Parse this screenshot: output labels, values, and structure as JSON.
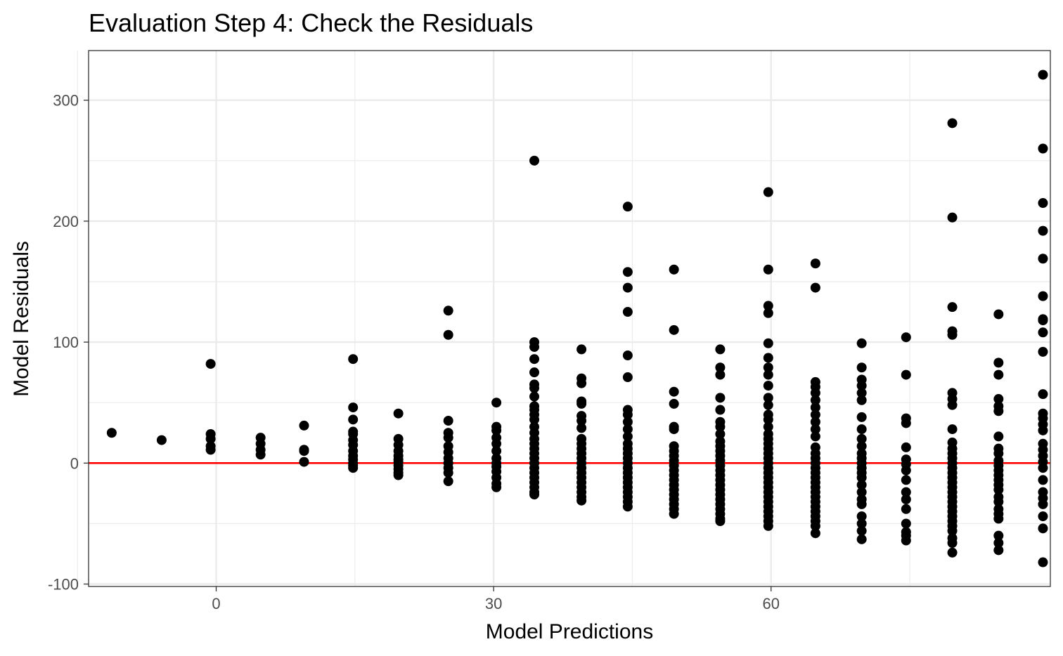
{
  "chart_data": {
    "type": "scatter",
    "title": "Evaluation Step 4: Check the Residuals",
    "xlabel": "Model Predictions",
    "ylabel": "Model Residuals",
    "xlim": [
      -13.8,
      90.2
    ],
    "ylim": [
      -102,
      341
    ],
    "x_ticks": [
      0,
      30,
      60
    ],
    "x_tick_labels": [
      "0",
      "30",
      "60"
    ],
    "x_minor_ticks": [
      -15,
      15,
      45,
      75
    ],
    "y_ticks": [
      -100,
      0,
      100,
      200,
      300
    ],
    "y_tick_labels": [
      "-100",
      "0",
      "100",
      "200",
      "300"
    ],
    "y_minor_ticks": [
      -50,
      50,
      150,
      250
    ],
    "grid": true,
    "reference_line": {
      "y": 0,
      "color": "#ff0000"
    },
    "colors": {
      "points": "#000000",
      "panel_border": "#333333",
      "grid": "#ebebeb"
    },
    "series": [
      {
        "x": -11.3,
        "y": [
          25
        ]
      },
      {
        "x": -5.9,
        "y": [
          19
        ]
      },
      {
        "x": -0.6,
        "y": [
          82,
          24,
          20,
          14,
          11
        ]
      },
      {
        "x": 4.8,
        "y": [
          21,
          16,
          11,
          7
        ]
      },
      {
        "x": 9.5,
        "y": [
          31,
          11,
          10,
          1
        ]
      },
      {
        "x": 14.8,
        "y": [
          86,
          46,
          36,
          26,
          24,
          19,
          15,
          10,
          6,
          3,
          0,
          -2,
          -4
        ]
      },
      {
        "x": 19.7,
        "y": [
          41,
          20,
          15,
          10,
          6,
          3,
          1,
          -2,
          -5,
          -8,
          -10
        ]
      },
      {
        "x": 25.1,
        "y": [
          126,
          106,
          35,
          25,
          21,
          14,
          9,
          4,
          0,
          -4,
          -8,
          -15
        ]
      },
      {
        "x": 30.3,
        "y": [
          50,
          30,
          27,
          21,
          16,
          10,
          4,
          0,
          -3,
          -7,
          -12,
          -17,
          -20
        ]
      },
      {
        "x": 34.4,
        "y": [
          250,
          100,
          96,
          86,
          75,
          65,
          62,
          55,
          47,
          44,
          40,
          36,
          30,
          25,
          20,
          16,
          12,
          8,
          4,
          0,
          -4,
          -8,
          -12,
          -16,
          -20,
          -24,
          -26
        ]
      },
      {
        "x": 39.5,
        "y": [
          94,
          70,
          66,
          51,
          49,
          39,
          35,
          29,
          20,
          16,
          12,
          8,
          4,
          0,
          -4,
          -8,
          -12,
          -16,
          -20,
          -24,
          -28,
          -31
        ]
      },
      {
        "x": 44.5,
        "y": [
          212,
          158,
          145,
          125,
          89,
          71,
          44,
          40,
          34,
          28,
          22,
          16,
          12,
          8,
          4,
          0,
          -4,
          -8,
          -12,
          -16,
          -20,
          -24,
          -28,
          -32,
          -36
        ]
      },
      {
        "x": 49.5,
        "y": [
          160,
          110,
          59,
          49,
          30,
          28,
          14,
          10,
          6,
          2,
          -2,
          -6,
          -10,
          -14,
          -18,
          -22,
          -26,
          -30,
          -34,
          -38,
          -42
        ]
      },
      {
        "x": 54.5,
        "y": [
          94,
          79,
          73,
          54,
          44,
          34,
          30,
          24,
          18,
          14,
          10,
          6,
          2,
          -2,
          -6,
          -10,
          -14,
          -18,
          -22,
          -26,
          -30,
          -34,
          -38,
          -42,
          -46,
          -48
        ]
      },
      {
        "x": 59.7,
        "y": [
          224,
          160,
          130,
          124,
          99,
          87,
          79,
          73,
          64,
          54,
          48,
          40,
          36,
          30,
          24,
          20,
          16,
          12,
          8,
          4,
          0,
          -4,
          -8,
          -12,
          -16,
          -20,
          -24,
          -28,
          -32,
          -36,
          -40,
          -44,
          -48,
          -52
        ]
      },
      {
        "x": 64.8,
        "y": [
          165,
          145,
          67,
          63,
          58,
          52,
          46,
          40,
          34,
          28,
          22,
          13,
          8,
          4,
          0,
          -4,
          -8,
          -12,
          -16,
          -20,
          -24,
          -28,
          -32,
          -36,
          -40,
          -44,
          -48,
          -52,
          -58
        ]
      },
      {
        "x": 69.8,
        "y": [
          99,
          79,
          69,
          64,
          58,
          52,
          38,
          28,
          20,
          14,
          8,
          4,
          0,
          -4,
          -8,
          -12,
          -18,
          -24,
          -30,
          -34,
          -44,
          -50,
          -56,
          -63
        ]
      },
      {
        "x": 74.6,
        "y": [
          104,
          73,
          37,
          33,
          13,
          3,
          -1,
          -6,
          -14,
          -24,
          -30,
          -38,
          -50,
          -57,
          -60,
          -64
        ]
      },
      {
        "x": 79.6,
        "y": [
          281,
          203,
          129,
          109,
          106,
          58,
          53,
          48,
          28,
          17,
          12,
          8,
          4,
          0,
          -4,
          -8,
          -12,
          -16,
          -20,
          -24,
          -28,
          -32,
          -36,
          -40,
          -44,
          -48,
          -52,
          -56,
          -62,
          -66,
          -74
        ]
      },
      {
        "x": 84.6,
        "y": [
          123,
          83,
          73,
          53,
          47,
          43,
          22,
          12,
          8,
          2,
          -2,
          -6,
          -10,
          -14,
          -18,
          -22,
          -28,
          -32,
          -38,
          -42,
          -46,
          -60,
          -66,
          -72
        ]
      },
      {
        "x": 89.4,
        "y": [
          321,
          260,
          215,
          192,
          169,
          138,
          119,
          118,
          108,
          92,
          57,
          41,
          37,
          32,
          27,
          16,
          11,
          6,
          1,
          -4,
          -14,
          -24,
          -29,
          -34,
          -44,
          -54,
          -82
        ]
      }
    ]
  }
}
